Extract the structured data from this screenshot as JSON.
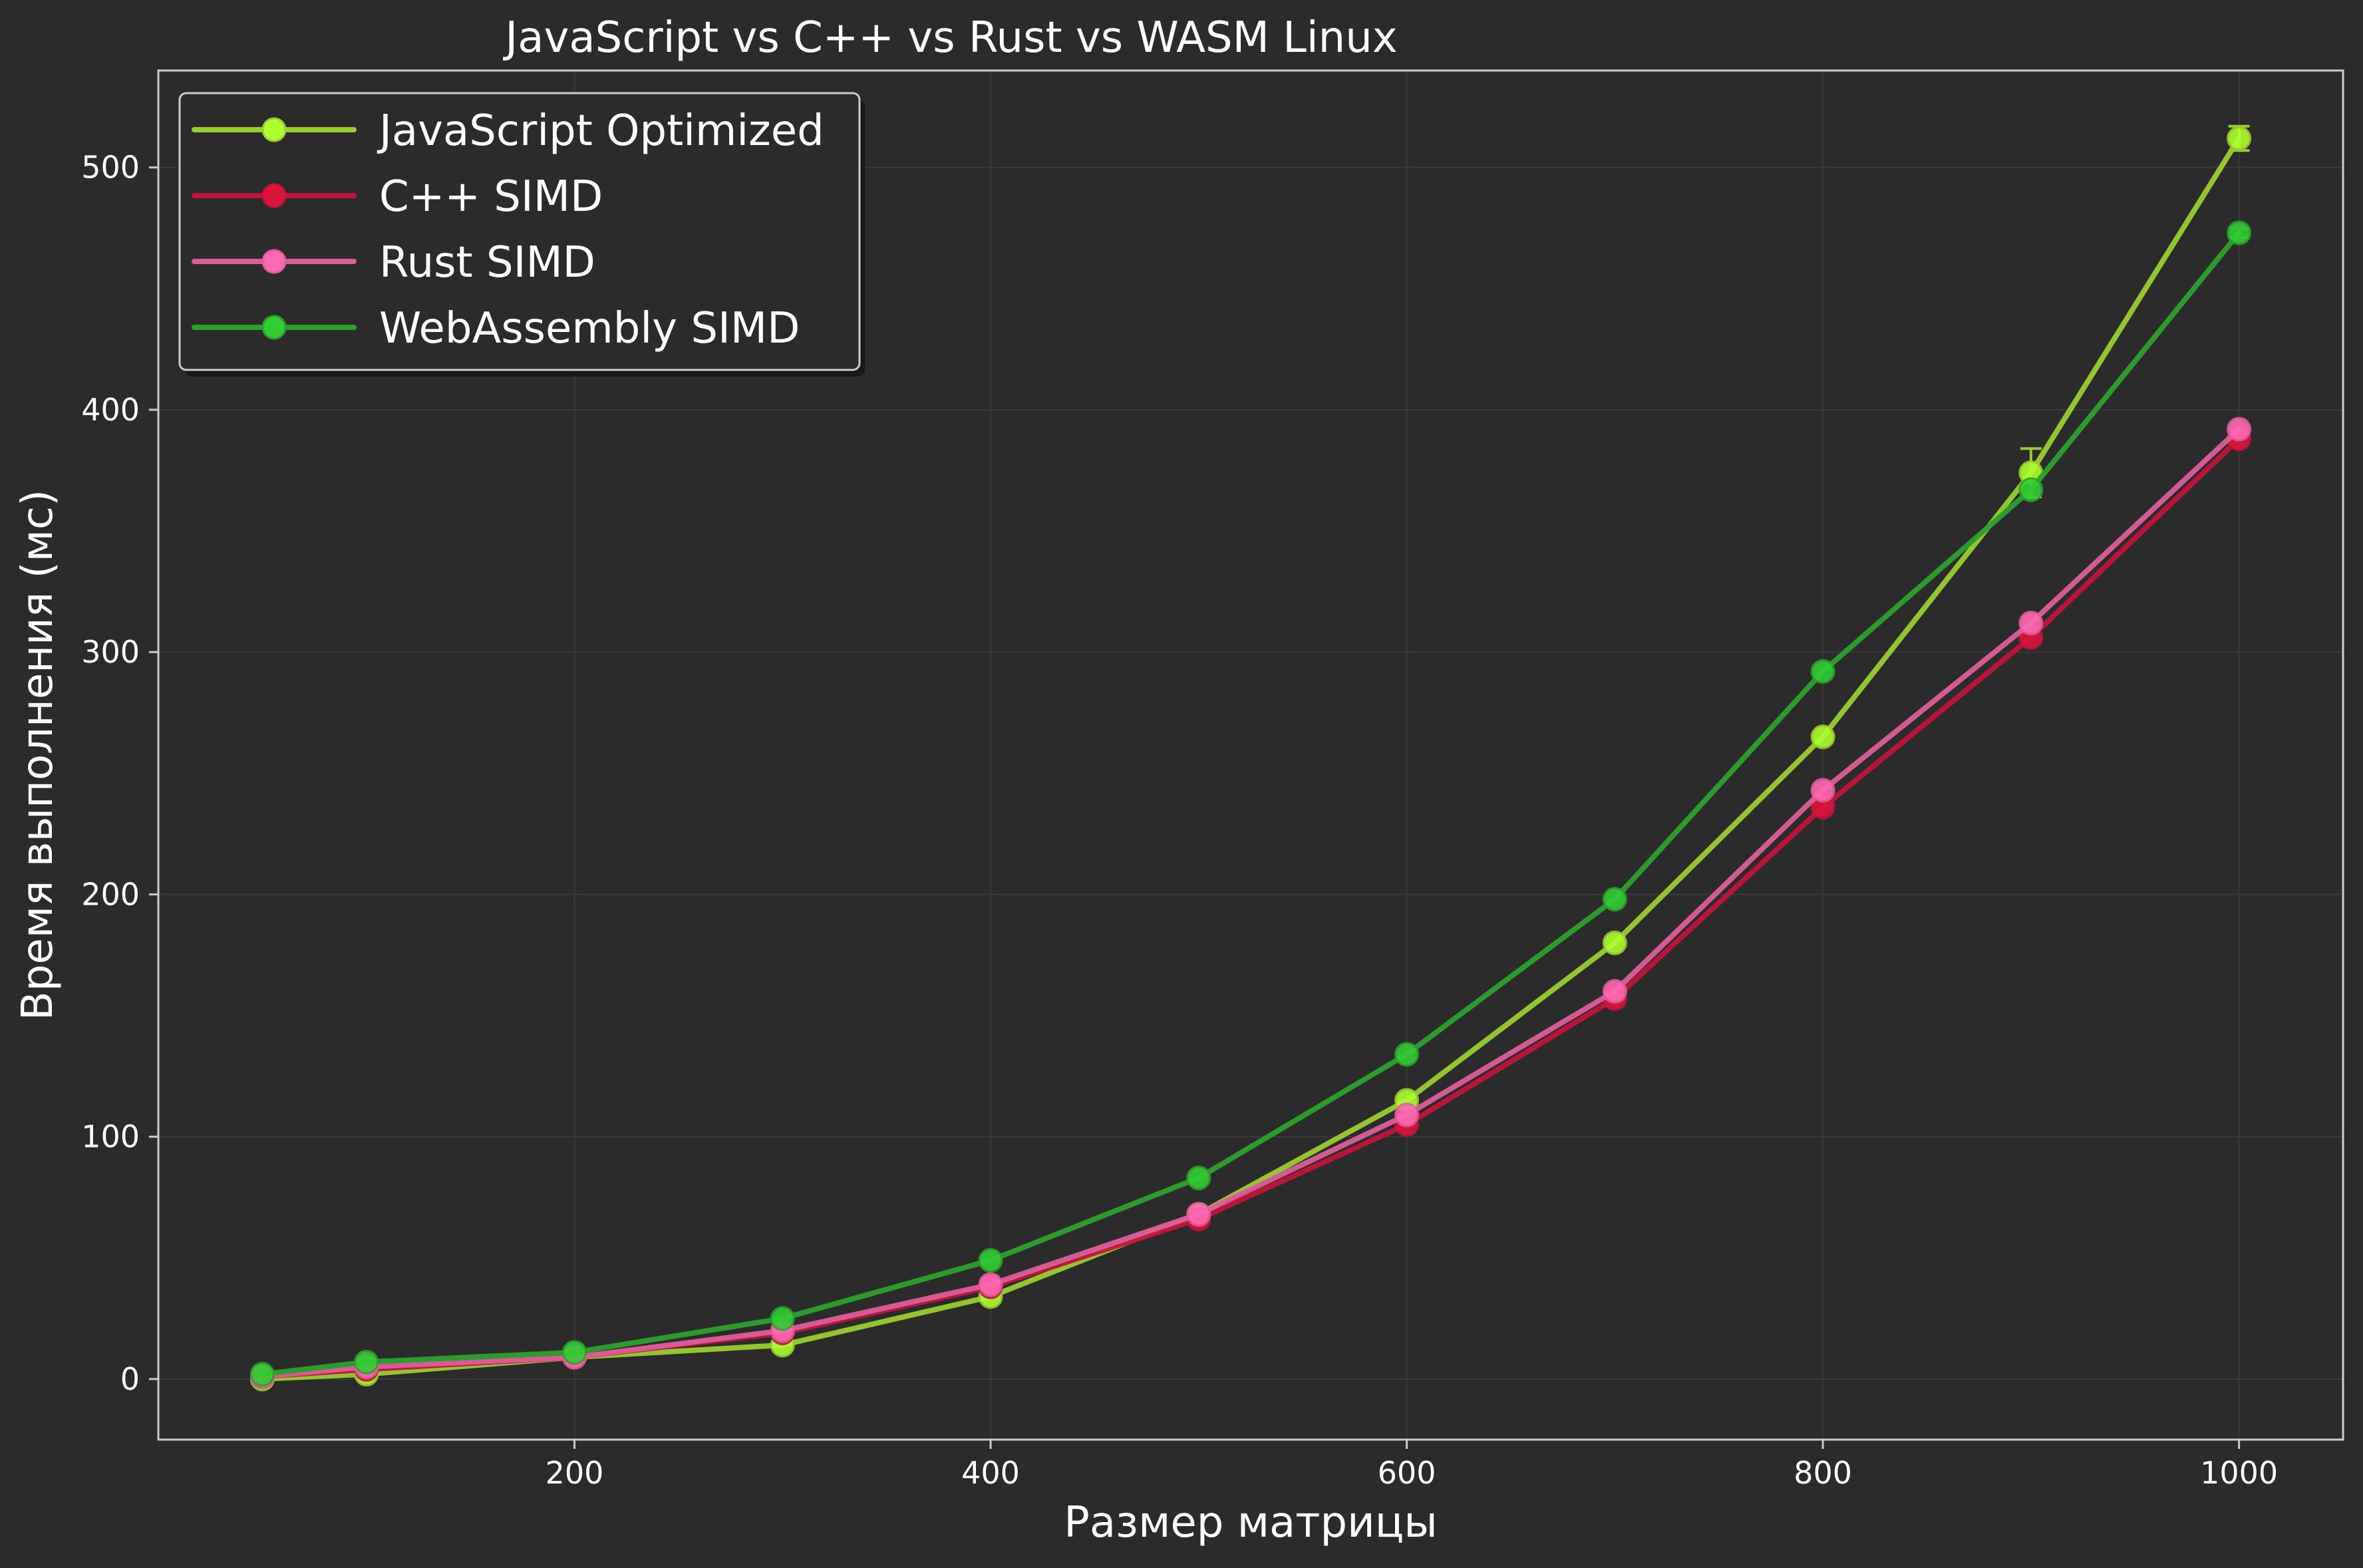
{
  "chart_data": {
    "type": "line",
    "title": "JavaScript vs C++ vs Rust vs WASM Linux",
    "xlabel": "Размер матрицы",
    "ylabel": "Время выполнения (мс)",
    "xlim": [
      0,
      1050
    ],
    "ylim": [
      -25,
      540
    ],
    "xticks": [
      200,
      400,
      600,
      800,
      1000
    ],
    "yticks": [
      0,
      100,
      200,
      300,
      400,
      500
    ],
    "grid": true,
    "legend_position": "top-left",
    "x": [
      50,
      100,
      200,
      300,
      400,
      500,
      600,
      700,
      800,
      900,
      1000
    ],
    "series": [
      {
        "name": "JavaScript Optimized",
        "color": "#9acd32",
        "marker_color": "#adff2f",
        "values": [
          0,
          2,
          9,
          14,
          34,
          68,
          115,
          180,
          265,
          374,
          512
        ],
        "errors": [
          0,
          0,
          0,
          0,
          0,
          0,
          0,
          0,
          0,
          10,
          5
        ]
      },
      {
        "name": "C++ SIMD",
        "color": "#c0143c",
        "marker_color": "#dc143c",
        "values": [
          1,
          4,
          9,
          19,
          38,
          66,
          105,
          157,
          236,
          306,
          388
        ],
        "errors": [
          0,
          0,
          0,
          0,
          0,
          0,
          0,
          0,
          0,
          0,
          0
        ]
      },
      {
        "name": "Rust SIMD",
        "color": "#db5e99",
        "marker_color": "#ff69b4",
        "values": [
          1,
          5,
          9,
          20,
          39,
          68,
          109,
          160,
          243,
          312,
          392
        ],
        "errors": [
          0,
          0,
          0,
          0,
          0,
          0,
          0,
          0,
          0,
          0,
          0
        ]
      },
      {
        "name": "WebAssembly SIMD",
        "color": "#2ca02c",
        "marker_color": "#32cd32",
        "values": [
          2,
          7,
          11,
          25,
          49,
          83,
          134,
          198,
          292,
          367,
          473
        ],
        "errors": [
          0,
          0,
          0,
          0,
          0,
          0,
          0,
          0,
          0,
          0,
          2
        ]
      }
    ]
  },
  "colors": {
    "background": "#2b2b2b",
    "axes_frame": "#cccccc",
    "grid": "#3a3a3a",
    "text": "#ffffff",
    "legend_bg": "#2b2b2b"
  }
}
